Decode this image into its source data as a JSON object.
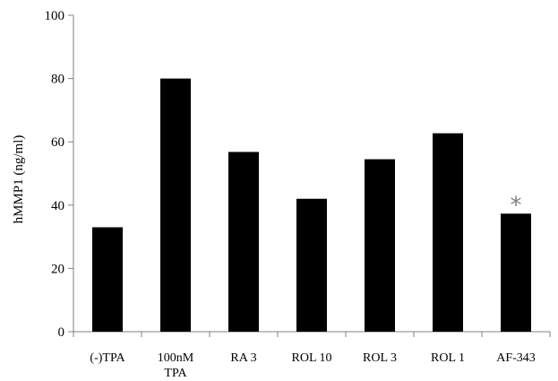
{
  "chart_data": {
    "type": "bar",
    "ylabel": "hMMP1 (ng/ml)",
    "xlabel": "",
    "ylim": [
      0,
      100
    ],
    "yticks": [
      0,
      20,
      40,
      60,
      80,
      100
    ],
    "grid": false,
    "categories": [
      [
        "(-)TPA"
      ],
      [
        "100nM",
        "TPA"
      ],
      [
        "RA 3"
      ],
      [
        "ROL 10"
      ],
      [
        "ROL 3"
      ],
      [
        "ROL 1"
      ],
      [
        "AF-343"
      ]
    ],
    "values": [
      33,
      80,
      56.8,
      42,
      54.5,
      62.7,
      37.3
    ],
    "bar_color": "#000000",
    "axis_color": "#808080",
    "annotations": [
      {
        "category_index": 6,
        "text": "*",
        "color": "#7f7f7f"
      }
    ]
  }
}
